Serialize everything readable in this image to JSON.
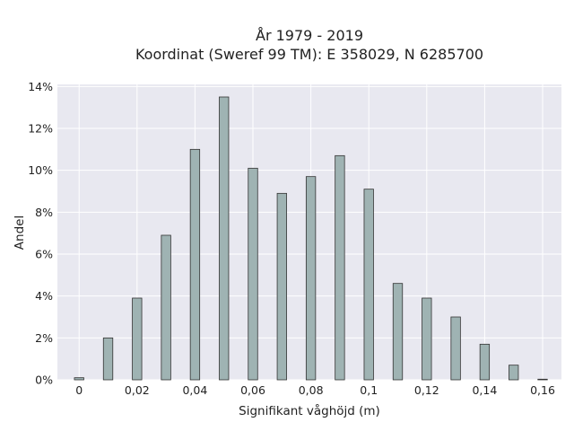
{
  "chart_data": {
    "type": "bar",
    "title": [
      "År 1979 - 2019",
      "Koordinat (Sweref 99 TM): E 358029, N 6285700"
    ],
    "xlabel": "Signifikant våghöjd (m)",
    "ylabel": "Andel",
    "x": [
      0.0,
      0.01,
      0.02,
      0.03,
      0.04,
      0.05,
      0.06,
      0.07,
      0.08,
      0.09,
      0.1,
      0.11,
      0.12,
      0.13,
      0.14,
      0.15,
      0.16
    ],
    "values": [
      0.1,
      2.0,
      3.9,
      6.9,
      11.0,
      13.5,
      10.1,
      8.9,
      9.7,
      10.7,
      9.1,
      4.6,
      3.9,
      3.0,
      1.7,
      0.7,
      0.03
    ],
    "xlim": [
      -0.0075,
      0.1665
    ],
    "ylim": [
      0,
      14.1
    ],
    "x_ticks": [
      0,
      0.02,
      0.04,
      0.06,
      0.08,
      0.1,
      0.12,
      0.14,
      0.16
    ],
    "x_tick_labels": [
      "0",
      "0,02",
      "0,04",
      "0,06",
      "0,08",
      "0,1",
      "0,12",
      "0,14",
      "0,16"
    ],
    "y_ticks": [
      0,
      2,
      4,
      6,
      8,
      10,
      12,
      14
    ],
    "y_tick_labels": [
      "0%",
      "2%",
      "4%",
      "6%",
      "8%",
      "10%",
      "12%",
      "14%"
    ],
    "grid": true,
    "colors": {
      "plot_background": "#e8e8f0",
      "grid": "#ffffff",
      "bar_fill": "#9fb3b3",
      "bar_stroke": "#333333"
    }
  }
}
